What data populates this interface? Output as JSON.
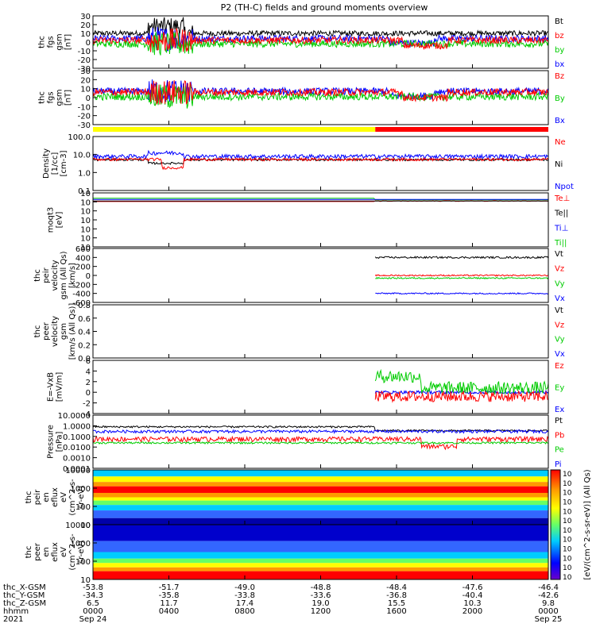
{
  "chart_data": {
    "type": "line",
    "title": "P2 (TH-C) fields and ground moments overview",
    "time_axis": {
      "hhmm": [
        "0000",
        "0400",
        "0800",
        "1200",
        "1600",
        "2000",
        "0000"
      ],
      "dates": [
        "Sep 24",
        "",
        "",
        "",
        "",
        "",
        "Sep 25"
      ],
      "year": "2021"
    },
    "ephemeris": {
      "labels": [
        "thc_X-GSM",
        "thc_Y-GSM",
        "thc_Z-GSM",
        "hhmm",
        "2021"
      ],
      "x_gsm": [
        "-53.8",
        "-51.7",
        "-49.0",
        "-48.8",
        "-48.4",
        "-47.6",
        "-46.4"
      ],
      "y_gsm": [
        "-34.3",
        "-35.8",
        "-33.8",
        "-33.6",
        "-36.8",
        "-40.4",
        "-42.6"
      ],
      "z_gsm": [
        "6.5",
        "11.7",
        "17.4",
        "19.0",
        "15.5",
        "10.3",
        "9.8"
      ]
    },
    "panels": [
      {
        "id": "fgs_gsm",
        "ylabel": [
          "thc",
          "fgs",
          "gsm",
          "[nT]"
        ],
        "yticks": [
          "30",
          "20",
          "10",
          "0",
          "-10",
          "-20",
          "-30"
        ],
        "legend": [
          {
            "label": "Bt",
            "color": "#000000"
          },
          {
            "label": "bz",
            "color": "#ff0000"
          },
          {
            "label": "by",
            "color": "#00cc00"
          },
          {
            "label": "bx",
            "color": "#0000ff"
          }
        ]
      },
      {
        "id": "fgs_dsl",
        "ylabel": [
          "thc",
          "fgs",
          "gsm",
          "[nT]"
        ],
        "yticks": [
          "30",
          "20",
          "10",
          "0",
          "-10",
          "-20",
          "-30"
        ],
        "legend": [
          {
            "label": "Bz",
            "color": "#ff0000"
          },
          {
            "label": "By",
            "color": "#00cc00"
          },
          {
            "label": "Bx",
            "color": "#0000ff"
          }
        ]
      },
      {
        "id": "density",
        "ylabel": [
          "Density",
          "[1/cc]",
          "[cm-3]"
        ],
        "yticks": [
          "100.0",
          "10.0",
          "1.0",
          "0.1"
        ],
        "legend": [
          {
            "label": "Ne",
            "color": "#ff0000"
          },
          {
            "label": "Ni",
            "color": "#000000"
          },
          {
            "label": "Npot",
            "color": "#0000ff"
          }
        ]
      },
      {
        "id": "temp",
        "ylabel": [
          "moqt3",
          "[eV]"
        ],
        "yticks": [
          "10",
          "10",
          "10",
          "10",
          "10",
          "10",
          "10"
        ],
        "legend": [
          {
            "label": "Te⊥",
            "color": "#ff0000"
          },
          {
            "label": "Te||",
            "color": "#000000"
          },
          {
            "label": "Ti⊥",
            "color": "#0000ff"
          },
          {
            "label": "Ti||",
            "color": "#00cc00"
          }
        ]
      },
      {
        "id": "peir_vel",
        "ylabel": [
          "thc",
          "peir",
          "velocity",
          "gsm (All Qs)",
          "[km/s]"
        ],
        "yticks": [
          "600",
          "400",
          "200",
          "0",
          "-200",
          "-400",
          "-600"
        ],
        "legend": [
          {
            "label": "Vt",
            "color": "#000000"
          },
          {
            "label": "Vz",
            "color": "#ff0000"
          },
          {
            "label": "Vy",
            "color": "#00cc00"
          },
          {
            "label": "Vx",
            "color": "#0000ff"
          }
        ]
      },
      {
        "id": "peer_vel",
        "ylabel": [
          "thc",
          "peer",
          "velocity",
          "gsm",
          "[km/s (All Qs)]"
        ],
        "yticks": [
          "0.8",
          "0.6",
          "0.4",
          "0.2",
          "0.0"
        ],
        "legend": [
          {
            "label": "Vt",
            "color": "#000000"
          },
          {
            "label": "Vz",
            "color": "#ff0000"
          },
          {
            "label": "Vy",
            "color": "#00cc00"
          },
          {
            "label": "Vx",
            "color": "#0000ff"
          }
        ]
      },
      {
        "id": "efield",
        "ylabel": [
          "E=-VxB",
          "[mV/m]"
        ],
        "yticks": [
          "6",
          "4",
          "2",
          "0",
          "-2",
          "-4"
        ],
        "legend": [
          {
            "label": "Ez",
            "color": "#ff0000"
          },
          {
            "label": "Ey",
            "color": "#00cc00"
          },
          {
            "label": "Ex",
            "color": "#0000ff"
          }
        ]
      },
      {
        "id": "pressure",
        "ylabel": [
          "Pressure",
          "[nPa]"
        ],
        "yticks": [
          "10.0000",
          "1.0000",
          "0.1000",
          "0.0100",
          "0.0010",
          "0.0001"
        ],
        "legend": [
          {
            "label": "Pt",
            "color": "#000000"
          },
          {
            "label": "Pb",
            "color": "#ff0000"
          },
          {
            "label": "Pe",
            "color": "#00cc00"
          },
          {
            "label": "Pi",
            "color": "#0000ff"
          }
        ]
      },
      {
        "id": "peir_spec",
        "ylabel": [
          "thc",
          "peir",
          "en",
          "eflux",
          "eV",
          "(cm^2-s-",
          "sr-eV)"
        ],
        "yticks": [
          "10000",
          "1000",
          "100",
          "10"
        ]
      },
      {
        "id": "peer_spec",
        "ylabel": [
          "thc",
          "peer",
          "en",
          "eflux",
          "eV",
          "(cm^2-s-",
          "sr-eV)"
        ],
        "yticks": [
          "10000",
          "1000",
          "100",
          "10"
        ]
      }
    ],
    "colorbar": {
      "label": "[eV/(cm^2-s-sr-eV)] (All Qs)",
      "ticks_top": [
        "10",
        "10",
        "10",
        "10",
        "10",
        "10"
      ],
      "ticks_bottom": [
        "10",
        "10",
        "10",
        "10",
        "10",
        "10"
      ]
    },
    "mode_bar": {
      "segments": [
        {
          "from_fraction": 0.0,
          "to_fraction": 0.62,
          "color": "#ffff00"
        },
        {
          "from_fraction": 0.62,
          "to_fraction": 1.0,
          "color": "#ff0000"
        }
      ]
    }
  }
}
